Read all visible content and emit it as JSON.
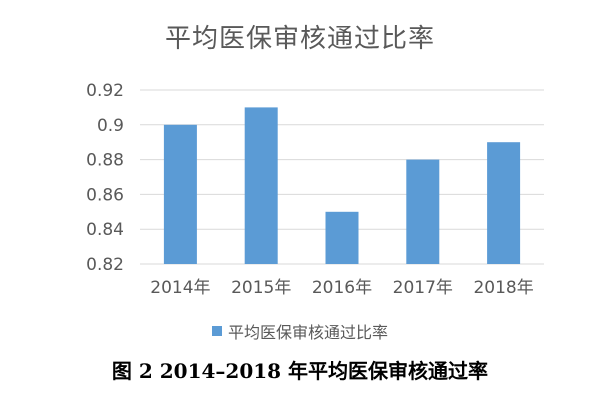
{
  "chart_data": {
    "type": "bar",
    "title": "平均医保审核通过比率",
    "categories": [
      "2014年",
      "2015年",
      "2016年",
      "2017年",
      "2018年"
    ],
    "series": [
      {
        "name": "平均医保审核通过比率",
        "values": [
          0.9,
          0.91,
          0.85,
          0.88,
          0.89
        ]
      }
    ],
    "yticks": [
      "0.82",
      "0.84",
      "0.86",
      "0.88",
      "0.9",
      "0.92"
    ],
    "ylim": [
      0.82,
      0.92
    ],
    "grid": true,
    "legend": "bottom",
    "colors": {
      "bar": "#5b9bd5",
      "grid": "#d9d9d9",
      "text": "#595959"
    }
  },
  "caption": "图 2  2014–2018 年平均医保审核通过率"
}
